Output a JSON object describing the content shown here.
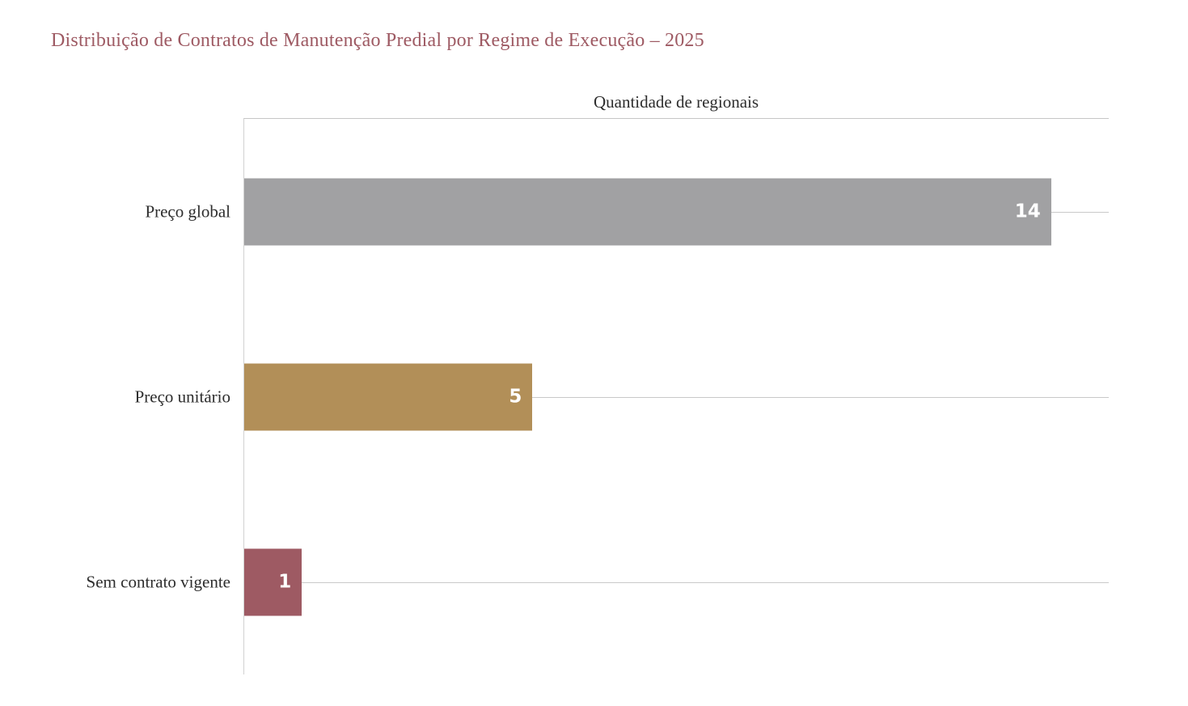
{
  "chart_data": {
    "type": "bar",
    "orientation": "horizontal",
    "title": "Distribuição de Contratos de Manutenção Predial por Regime de Execução – 2025",
    "title_color": "#9e5a63",
    "axis_title": "Quantidade de regionais",
    "categories": [
      "Preço global",
      "Preço unitário",
      "Sem contrato vigente"
    ],
    "values": [
      14,
      5,
      1
    ],
    "bar_colors": [
      "#a1a1a3",
      "#b28f58",
      "#9e5a63"
    ],
    "value_label_color": "#ffffff",
    "xlim": [
      0,
      15
    ],
    "grid": true,
    "legend": "none",
    "gridline_color": "#c9c9c9"
  }
}
